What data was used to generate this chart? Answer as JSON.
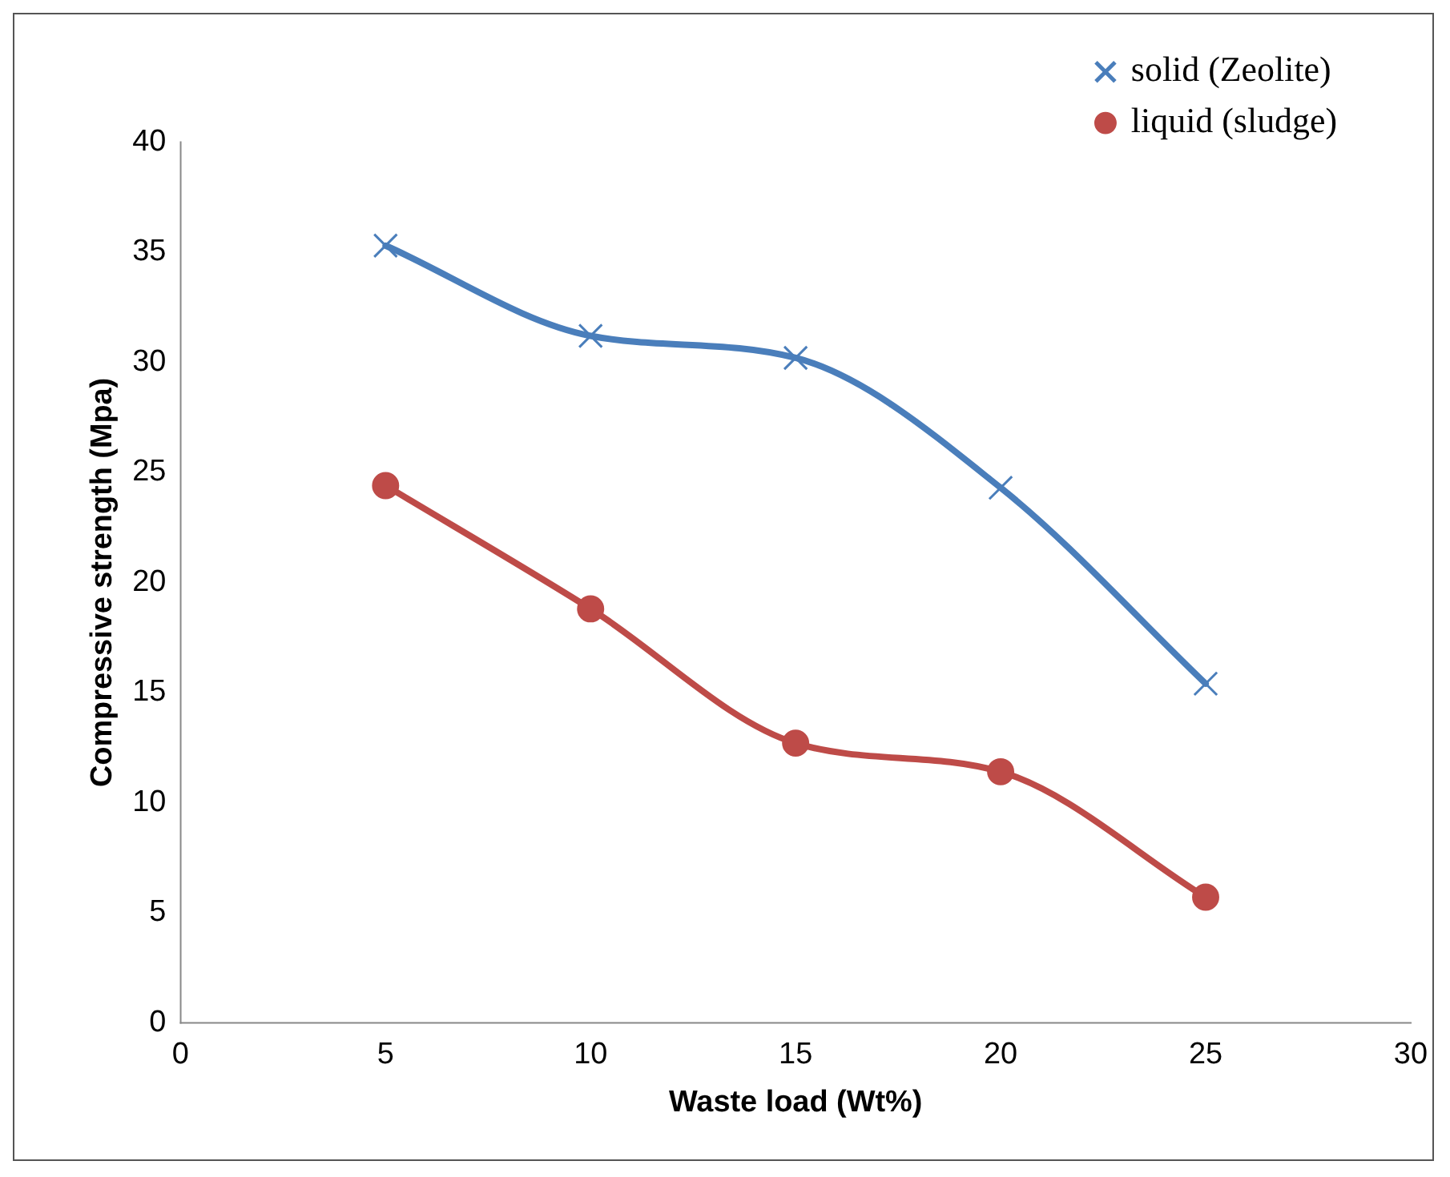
{
  "chart_data": {
    "type": "line",
    "xlabel": "Waste load (Wt%)",
    "ylabel": "Compressive strength (Mpa)",
    "x": [
      5,
      10,
      15,
      20,
      25
    ],
    "series": [
      {
        "name": "solid (Zeolite)",
        "color": "#4a7ebb",
        "marker": "cross",
        "values": [
          35.3,
          31.2,
          30.2,
          24.3,
          15.4
        ]
      },
      {
        "name": "liquid (sludge)",
        "color": "#be4b48",
        "marker": "circle",
        "values": [
          24.4,
          18.8,
          12.7,
          11.4,
          5.7
        ]
      }
    ],
    "xlim": [
      0,
      30
    ],
    "xticks": [
      0,
      5,
      10,
      15,
      20,
      25,
      30
    ],
    "ylim": [
      0,
      40
    ],
    "yticks": [
      0,
      5,
      10,
      15,
      20,
      25,
      30,
      35,
      40
    ],
    "grid": false,
    "legend": "top right",
    "line_style": "solid"
  }
}
